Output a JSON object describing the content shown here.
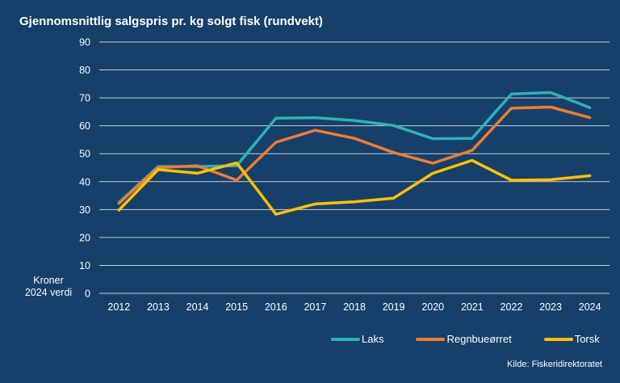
{
  "chart_data": {
    "type": "line",
    "title": "Gjennomsnittlig salgspris pr. kg solgt fisk (rundvekt)",
    "xlabel": "",
    "ylabel": "Kroner\n2024 verdi",
    "ylabel_lines": [
      "Kroner",
      "2024 verdi"
    ],
    "ylim": [
      0,
      90
    ],
    "yticks": [
      0,
      10,
      20,
      30,
      40,
      50,
      60,
      70,
      80,
      90
    ],
    "grid": true,
    "legend_position": "bottom-right",
    "categories": [
      "2012",
      "2013",
      "2014",
      "2015",
      "2016",
      "2017",
      "2018",
      "2019",
      "2020",
      "2021",
      "2022",
      "2023",
      "2024"
    ],
    "series": [
      {
        "name": "Laks",
        "color": "#2bb3b8",
        "values": [
          32.5,
          45.4,
          45.4,
          45.7,
          62.7,
          62.9,
          61.9,
          60.1,
          55.4,
          55.5,
          71.4,
          71.9,
          66.5
        ]
      },
      {
        "name": "Regnbueørret",
        "color": "#ed7d31",
        "values": [
          32.2,
          45.0,
          45.7,
          40.5,
          54.1,
          58.4,
          55.5,
          50.4,
          46.6,
          51.2,
          66.3,
          66.7,
          62.9
        ]
      },
      {
        "name": "Torsk",
        "color": "#ffc000",
        "values": [
          29.8,
          44.3,
          43.0,
          46.7,
          28.3,
          32.0,
          32.8,
          34.1,
          43.0,
          47.6,
          40.5,
          40.7,
          42.1
        ]
      }
    ],
    "source": "Kilde: Fiskeridirektoratet"
  },
  "colors": {
    "background": "#163f6a",
    "grid": "#c8cfd8",
    "text": "#ffffff"
  }
}
